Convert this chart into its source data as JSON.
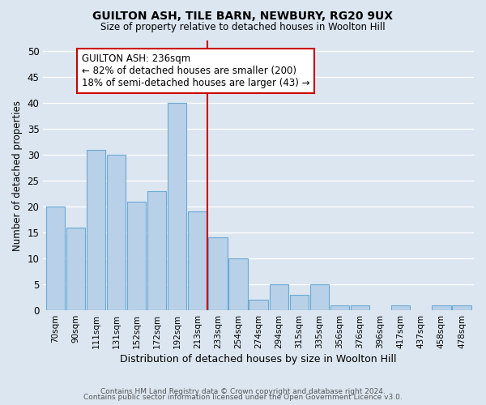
{
  "title": "GUILTON ASH, TILE BARN, NEWBURY, RG20 9UX",
  "subtitle": "Size of property relative to detached houses in Woolton Hill",
  "xlabel": "Distribution of detached houses by size in Woolton Hill",
  "ylabel": "Number of detached properties",
  "bar_labels": [
    "70sqm",
    "90sqm",
    "111sqm",
    "131sqm",
    "152sqm",
    "172sqm",
    "192sqm",
    "213sqm",
    "233sqm",
    "254sqm",
    "274sqm",
    "294sqm",
    "315sqm",
    "335sqm",
    "356sqm",
    "376sqm",
    "396sqm",
    "417sqm",
    "437sqm",
    "458sqm",
    "478sqm"
  ],
  "bar_values": [
    20,
    16,
    31,
    30,
    21,
    23,
    40,
    19,
    14,
    10,
    2,
    5,
    3,
    5,
    1,
    1,
    0,
    1,
    0,
    1,
    1
  ],
  "bar_color": "#b8d0e8",
  "bar_edge_color": "#6aaad4",
  "vline_color": "#cc0000",
  "annotation_title": "GUILTON ASH: 236sqm",
  "annotation_line1": "← 82% of detached houses are smaller (200)",
  "annotation_line2": "18% of semi-detached houses are larger (43) →",
  "annotation_box_color": "#cc0000",
  "ylim": [
    0,
    52
  ],
  "yticks": [
    0,
    5,
    10,
    15,
    20,
    25,
    30,
    35,
    40,
    45,
    50
  ],
  "bg_color": "#dce6f0",
  "plot_bg_color": "#dce6f0",
  "grid_color": "#ffffff",
  "footer1": "Contains HM Land Registry data © Crown copyright and database right 2024.",
  "footer2": "Contains public sector information licensed under the Open Government Licence v3.0."
}
